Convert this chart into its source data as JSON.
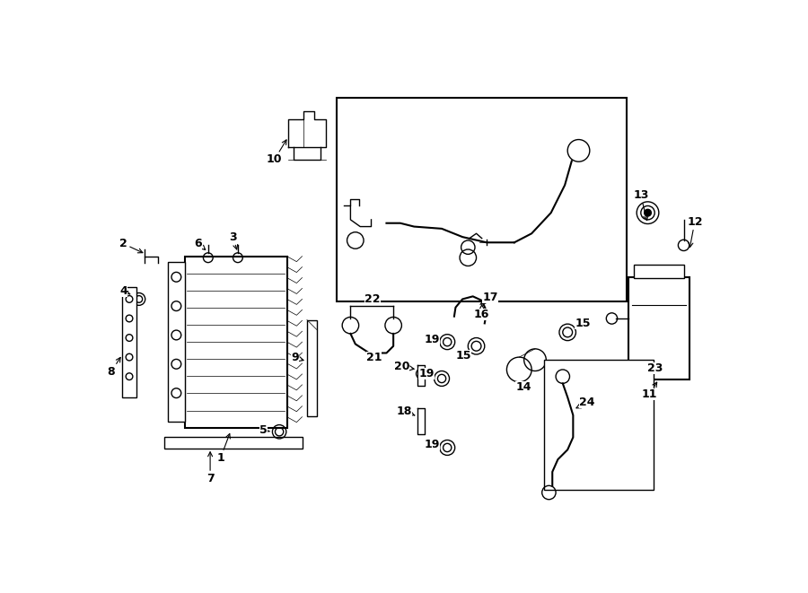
{
  "bg_color": "#ffffff",
  "line_color": "#000000",
  "fig_width": 9.0,
  "fig_height": 6.61,
  "dpi": 100,
  "lw": 1.0,
  "lw_thick": 1.5,
  "fontsize": 9,
  "fontsize_small": 8
}
